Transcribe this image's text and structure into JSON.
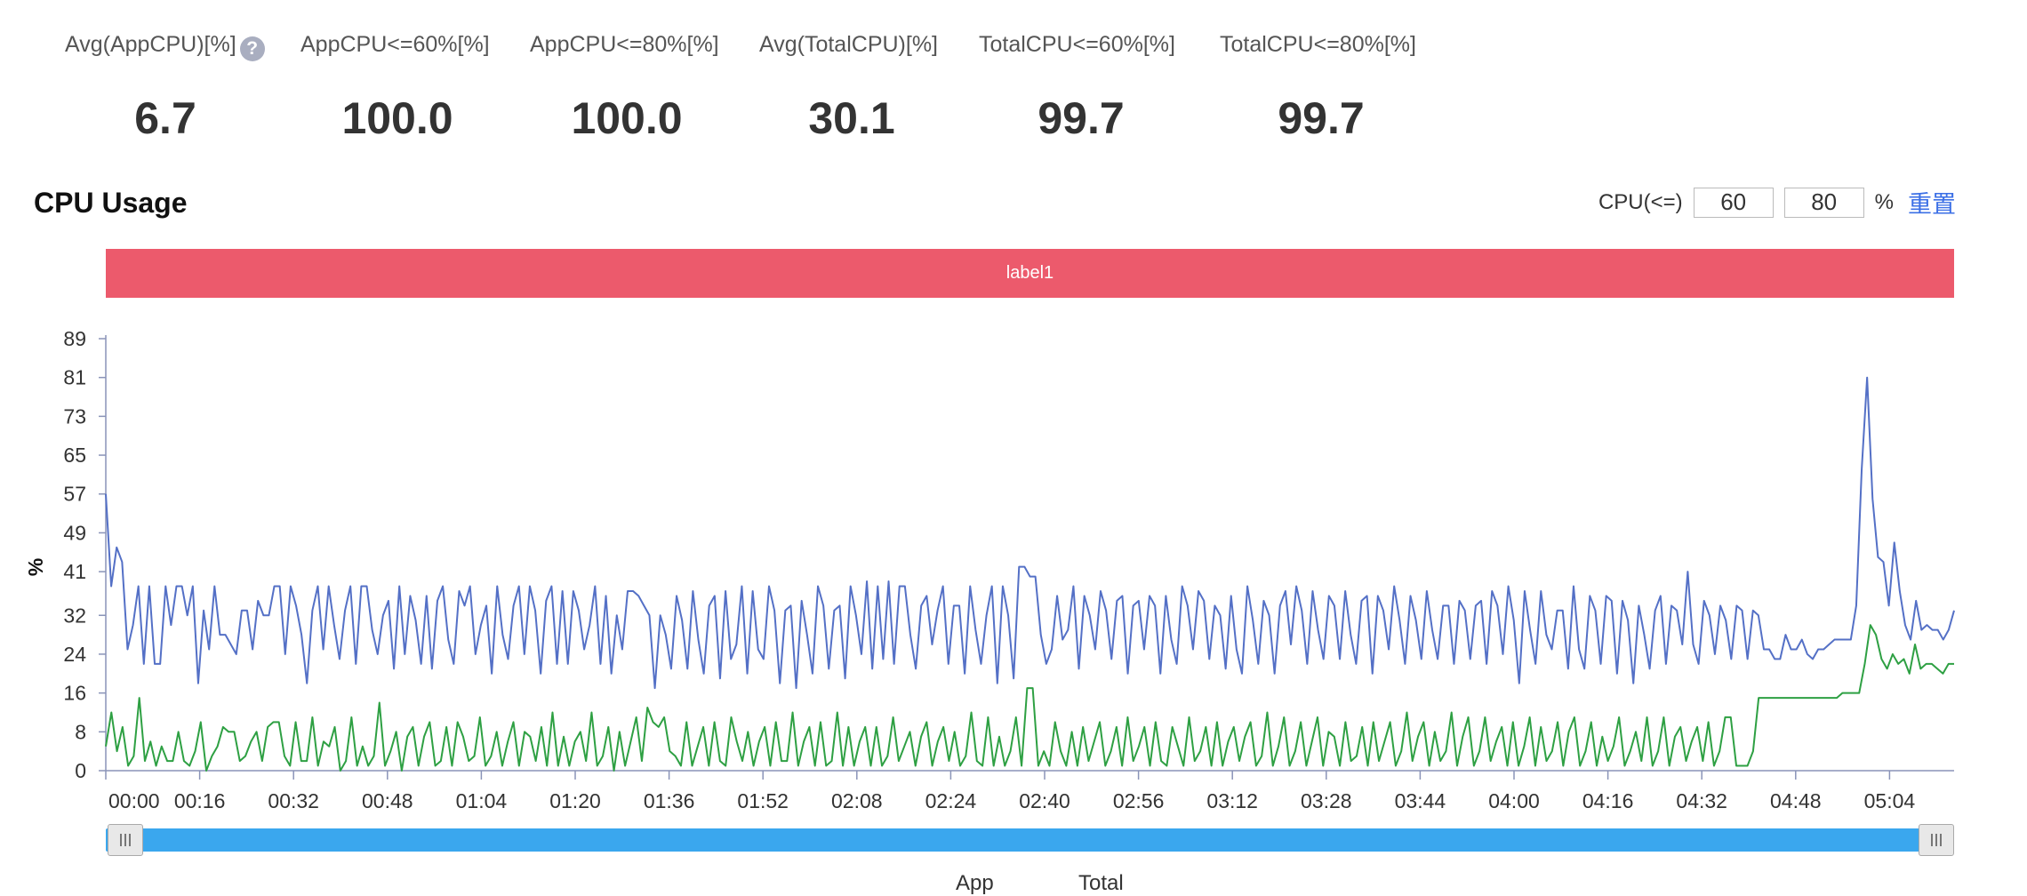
{
  "stats": [
    {
      "label": "Avg(AppCPU)[%]",
      "value": "6.7",
      "help": "?"
    },
    {
      "label": "AppCPU<=60%[%]",
      "value": "100.0"
    },
    {
      "label": "AppCPU<=80%[%]",
      "value": "100.0"
    },
    {
      "label": "Avg(TotalCPU)[%]",
      "value": "30.1"
    },
    {
      "label": "TotalCPU<=60%[%]",
      "value": "99.7"
    },
    {
      "label": "TotalCPU<=80%[%]",
      "value": "99.7"
    }
  ],
  "section_title": "CPU Usage",
  "cpu_control": {
    "label": "CPU(<=)",
    "threshold1": "60",
    "threshold2": "80",
    "unit": "%",
    "reset": "重置"
  },
  "label_bar": {
    "text": "label1",
    "color": "#ec5a6c"
  },
  "legend": {
    "app": "App",
    "total": "Total"
  },
  "colors": {
    "total_line": "#5470c6",
    "app_line": "#2ea043",
    "slider": "#3aa7ee",
    "accent": "#3b6fe6"
  },
  "chart_data": {
    "type": "line",
    "title": "CPU Usage",
    "xlabel": "",
    "ylabel": "%",
    "ylim": [
      0,
      89
    ],
    "yticks": [
      0,
      8,
      16,
      24,
      32,
      41,
      49,
      57,
      65,
      73,
      81,
      89
    ],
    "xtick_labels": [
      "00:00",
      "00:16",
      "00:32",
      "00:48",
      "01:04",
      "01:20",
      "01:36",
      "01:52",
      "02:08",
      "02:24",
      "02:40",
      "02:56",
      "03:12",
      "03:28",
      "03:44",
      "04:00",
      "04:16",
      "04:32",
      "04:48",
      "05:04"
    ],
    "xtick_seconds": [
      0,
      16,
      32,
      48,
      64,
      80,
      96,
      112,
      128,
      144,
      160,
      176,
      192,
      208,
      224,
      240,
      256,
      272,
      288,
      304
    ],
    "x_range_seconds": [
      0,
      315
    ],
    "grid": false,
    "series": [
      {
        "name": "Total",
        "color": "#5470c6",
        "values": [
          57,
          38,
          46,
          43,
          25,
          30,
          38,
          22,
          38,
          22,
          22,
          38,
          30,
          38,
          38,
          32,
          38,
          18,
          33,
          25,
          38,
          28,
          28,
          26,
          24,
          33,
          33,
          25,
          35,
          32,
          32,
          38,
          38,
          24,
          38,
          34,
          28,
          18,
          33,
          38,
          25,
          38,
          30,
          23,
          33,
          38,
          22,
          38,
          38,
          29,
          24,
          32,
          35,
          21,
          38,
          24,
          36,
          31,
          22,
          36,
          21,
          35,
          38,
          27,
          22,
          37,
          34,
          38,
          24,
          30,
          34,
          20,
          38,
          28,
          23,
          34,
          38,
          24,
          38,
          33,
          20,
          35,
          38,
          22,
          37,
          22,
          37,
          33,
          25,
          30,
          38,
          22,
          36,
          20,
          32,
          25,
          37,
          37,
          36,
          34,
          32,
          17,
          32,
          28,
          21,
          36,
          31,
          21,
          37,
          27,
          20,
          34,
          36,
          19,
          37,
          23,
          26,
          38,
          20,
          37,
          25,
          23,
          38,
          33,
          18,
          33,
          34,
          17,
          35,
          28,
          20,
          38,
          34,
          21,
          33,
          34,
          19,
          38,
          32,
          24,
          39,
          21,
          38,
          23,
          39,
          22,
          38,
          38,
          28,
          21,
          34,
          36,
          26,
          33,
          38,
          22,
          34,
          34,
          20,
          38,
          29,
          22,
          32,
          38,
          18,
          38,
          32,
          19,
          42,
          42,
          40,
          40,
          28,
          22,
          25,
          36,
          27,
          29,
          38,
          21,
          36,
          32,
          25,
          37,
          33,
          23,
          35,
          36,
          20,
          34,
          35,
          25,
          36,
          34,
          20,
          36,
          27,
          22,
          38,
          34,
          25,
          37,
          35,
          23,
          34,
          32,
          21,
          36,
          25,
          20,
          38,
          31,
          22,
          35,
          32,
          20,
          34,
          37,
          26,
          38,
          33,
          22,
          37,
          29,
          23,
          36,
          34,
          23,
          37,
          28,
          22,
          35,
          36,
          20,
          36,
          33,
          25,
          38,
          31,
          22,
          36,
          31,
          23,
          37,
          29,
          23,
          34,
          34,
          22,
          35,
          33,
          23,
          34,
          35,
          22,
          37,
          34,
          24,
          38,
          31,
          18,
          37,
          29,
          22,
          37,
          28,
          25,
          33,
          33,
          21,
          38,
          25,
          21,
          36,
          33,
          22,
          36,
          35,
          20,
          35,
          31,
          18,
          34,
          28,
          21,
          33,
          36,
          22,
          34,
          33,
          26,
          41,
          26,
          22,
          35,
          32,
          24,
          34,
          31,
          23,
          34,
          33,
          23,
          33,
          32,
          25,
          25,
          23,
          23,
          28,
          25,
          25,
          27,
          24,
          23,
          25,
          25,
          26,
          27,
          27,
          27,
          27,
          34,
          62,
          81,
          56,
          44,
          43,
          34,
          47,
          37,
          30,
          27,
          35,
          29,
          30,
          29,
          29,
          27,
          29,
          33
        ]
      },
      {
        "name": "App",
        "color": "#2ea043",
        "values": [
          5,
          12,
          4,
          9,
          1,
          3,
          15,
          2,
          6,
          1,
          5,
          2,
          2,
          8,
          2,
          1,
          4,
          10,
          0,
          3,
          5,
          9,
          8,
          8,
          2,
          3,
          6,
          8,
          2,
          9,
          10,
          10,
          3,
          1,
          10,
          2,
          2,
          11,
          1,
          6,
          5,
          9,
          0,
          2,
          11,
          1,
          5,
          1,
          3,
          14,
          1,
          4,
          8,
          0,
          7,
          9,
          1,
          7,
          10,
          1,
          2,
          9,
          1,
          10,
          7,
          2,
          3,
          11,
          1,
          3,
          8,
          1,
          6,
          10,
          1,
          8,
          7,
          2,
          9,
          1,
          12,
          1,
          7,
          1,
          6,
          8,
          2,
          12,
          1,
          3,
          9,
          0,
          8,
          1,
          6,
          11,
          2,
          13,
          10,
          9,
          11,
          4,
          3,
          1,
          10,
          1,
          5,
          9,
          1,
          10,
          2,
          1,
          11,
          6,
          2,
          8,
          1,
          6,
          9,
          1,
          10,
          2,
          2,
          12,
          1,
          6,
          9,
          1,
          10,
          1,
          2,
          12,
          1,
          9,
          1,
          6,
          9,
          1,
          9,
          1,
          3,
          11,
          2,
          5,
          8,
          1,
          7,
          10,
          1,
          6,
          9,
          2,
          8,
          1,
          3,
          12,
          2,
          1,
          11,
          1,
          7,
          1,
          4,
          11,
          1,
          17,
          17,
          1,
          4,
          1,
          10,
          4,
          1,
          8,
          1,
          9,
          2,
          6,
          10,
          1,
          4,
          9,
          1,
          11,
          2,
          5,
          9,
          1,
          10,
          2,
          1,
          9,
          5,
          1,
          11,
          2,
          4,
          9,
          1,
          10,
          1,
          6,
          9,
          2,
          7,
          10,
          1,
          3,
          12,
          1,
          5,
          11,
          1,
          4,
          10,
          1,
          6,
          11,
          1,
          8,
          7,
          1,
          10,
          2,
          3,
          9,
          1,
          10,
          2,
          6,
          10,
          1,
          4,
          12,
          2,
          7,
          10,
          1,
          8,
          2,
          4,
          12,
          1,
          7,
          11,
          1,
          4,
          11,
          2,
          6,
          9,
          1,
          10,
          1,
          5,
          11,
          1,
          9,
          2,
          4,
          10,
          1,
          8,
          11,
          1,
          4,
          10,
          1,
          7,
          2,
          5,
          11,
          1,
          4,
          8,
          2,
          11,
          1,
          4,
          11,
          1,
          7,
          9,
          2,
          6,
          9,
          2,
          10,
          1,
          4,
          11,
          11,
          1,
          1,
          1,
          4,
          15,
          15,
          15,
          15,
          15,
          15,
          15,
          15,
          15,
          15,
          15,
          15,
          15,
          15,
          15,
          16,
          16,
          16,
          16,
          22,
          30,
          28,
          23,
          21,
          24,
          22,
          23,
          20,
          26,
          21,
          22,
          22,
          21,
          20,
          22,
          22
        ]
      }
    ]
  }
}
